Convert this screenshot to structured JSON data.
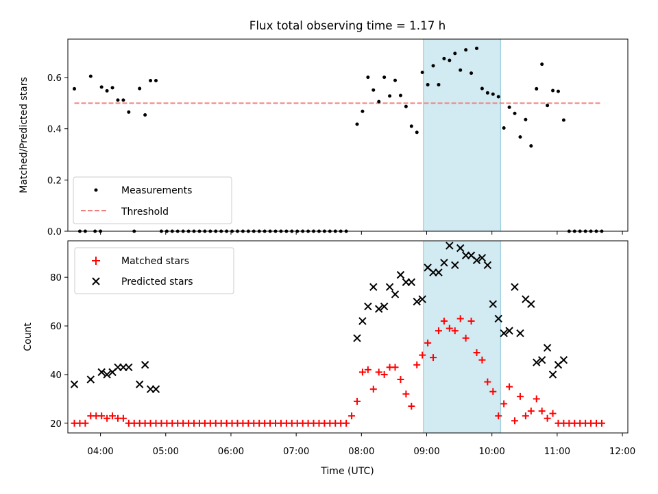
{
  "title": "Flux total observing time = 1.17 h",
  "chart_data": [
    {
      "type": "scatter",
      "ylabel": "Matched/Predicted stars",
      "xlabel": "",
      "xlim": [
        "03:30",
        "12:05"
      ],
      "ylim": [
        0,
        0.75
      ],
      "y_ticks": [
        0.0,
        0.2,
        0.4,
        0.6
      ],
      "y_tick_labels": [
        "0.0",
        "0.2",
        "0.4",
        "0.6"
      ],
      "legend_position": "bottom-left",
      "highlight_span": {
        "start": "08:57",
        "end": "10:08",
        "color": "#add8e6"
      },
      "threshold": {
        "name": "Threshold",
        "value": 0.5,
        "color": "#f08080",
        "style": "dashed"
      },
      "series": [
        {
          "name": "Measurements",
          "marker": "dot",
          "color": "#000000",
          "points": [
            [
              "03:36",
              0.556
            ],
            [
              "03:41",
              0
            ],
            [
              "03:46",
              0
            ],
            [
              "03:51",
              0.605
            ],
            [
              "03:55",
              0
            ],
            [
              "04:00",
              0
            ],
            [
              "04:01",
              0.563
            ],
            [
              "04:06",
              0.548
            ],
            [
              "04:11",
              0.56
            ],
            [
              "04:16",
              0.512
            ],
            [
              "04:21",
              0.512
            ],
            [
              "04:26",
              0.465
            ],
            [
              "04:31",
              0
            ],
            [
              "04:36",
              0.557
            ],
            [
              "04:41",
              0.454
            ],
            [
              "04:46",
              0.588
            ],
            [
              "04:51",
              0.588
            ],
            [
              "04:56",
              0
            ],
            [
              "05:01",
              0
            ],
            [
              "05:06",
              0
            ],
            [
              "05:11",
              0
            ],
            [
              "05:16",
              0
            ],
            [
              "05:21",
              0
            ],
            [
              "05:26",
              0
            ],
            [
              "05:31",
              0
            ],
            [
              "05:36",
              0
            ],
            [
              "05:41",
              0
            ],
            [
              "05:46",
              0
            ],
            [
              "05:51",
              0
            ],
            [
              "05:56",
              0
            ],
            [
              "06:01",
              0
            ],
            [
              "06:06",
              0
            ],
            [
              "06:11",
              0
            ],
            [
              "06:16",
              0
            ],
            [
              "06:21",
              0
            ],
            [
              "06:26",
              0
            ],
            [
              "06:31",
              0
            ],
            [
              "06:36",
              0
            ],
            [
              "06:41",
              0
            ],
            [
              "06:46",
              0
            ],
            [
              "06:51",
              0
            ],
            [
              "06:56",
              0
            ],
            [
              "07:01",
              0
            ],
            [
              "07:06",
              0
            ],
            [
              "07:11",
              0
            ],
            [
              "07:16",
              0
            ],
            [
              "07:21",
              0
            ],
            [
              "07:26",
              0
            ],
            [
              "07:31",
              0
            ],
            [
              "07:36",
              0
            ],
            [
              "07:41",
              0
            ],
            [
              "07:46",
              0
            ],
            [
              "07:56",
              0.418
            ],
            [
              "08:01",
              0.468
            ],
            [
              "08:06",
              0.601
            ],
            [
              "08:11",
              0.551
            ],
            [
              "08:16",
              0.506
            ],
            [
              "08:21",
              0.601
            ],
            [
              "08:26",
              0.528
            ],
            [
              "08:31",
              0.589
            ],
            [
              "08:36",
              0.53
            ],
            [
              "08:41",
              0.487
            ],
            [
              "08:46",
              0.41
            ],
            [
              "08:51",
              0.386
            ],
            [
              "08:56",
              0.62
            ],
            [
              "09:01",
              0.572
            ],
            [
              "09:06",
              0.646
            ],
            [
              "09:11",
              0.572
            ],
            [
              "09:16",
              0.674
            ],
            [
              "09:21",
              0.667
            ],
            [
              "09:26",
              0.694
            ],
            [
              "09:31",
              0.629
            ],
            [
              "09:36",
              0.708
            ],
            [
              "09:41",
              0.617
            ],
            [
              "09:46",
              0.714
            ],
            [
              "09:51",
              0.557
            ],
            [
              "09:56",
              0.54
            ],
            [
              "10:01",
              0.535
            ],
            [
              "10:06",
              0.525
            ],
            [
              "10:11",
              0.403
            ],
            [
              "10:16",
              0.484
            ],
            [
              "10:21",
              0.46
            ],
            [
              "10:26",
              0.368
            ],
            [
              "10:31",
              0.436
            ],
            [
              "10:36",
              0.333
            ],
            [
              "10:41",
              0.556
            ],
            [
              "10:46",
              0.652
            ],
            [
              "10:51",
              0.491
            ],
            [
              "10:56",
              0.549
            ],
            [
              "11:01",
              0.546
            ],
            [
              "11:06",
              0.434
            ],
            [
              "11:11",
              0
            ],
            [
              "11:16",
              0
            ],
            [
              "11:21",
              0
            ],
            [
              "11:26",
              0
            ],
            [
              "11:31",
              0
            ],
            [
              "11:36",
              0
            ],
            [
              "11:41",
              0
            ]
          ]
        }
      ]
    },
    {
      "type": "scatter",
      "ylabel": "Count",
      "xlabel": "Time (UTC)",
      "xlim": [
        "03:30",
        "12:05"
      ],
      "ylim": [
        16,
        95
      ],
      "y_ticks": [
        20,
        40,
        60,
        80
      ],
      "y_tick_labels": [
        "20",
        "40",
        "60",
        "80"
      ],
      "x_tick_labels": [
        "04:00",
        "05:00",
        "06:00",
        "07:00",
        "08:00",
        "09:00",
        "10:00",
        "11:00",
        "12:00"
      ],
      "legend_position": "top-left",
      "highlight_span": {
        "start": "08:57",
        "end": "10:08",
        "color": "#add8e6"
      },
      "series": [
        {
          "name": "Matched stars",
          "marker": "plus",
          "color": "#ff0000",
          "points": [
            [
              "03:36",
              20
            ],
            [
              "03:41",
              20
            ],
            [
              "03:46",
              20
            ],
            [
              "03:51",
              23
            ],
            [
              "03:56",
              23
            ],
            [
              "04:01",
              23
            ],
            [
              "04:06",
              22
            ],
            [
              "04:11",
              23
            ],
            [
              "04:16",
              22
            ],
            [
              "04:21",
              22
            ],
            [
              "04:26",
              20
            ],
            [
              "04:31",
              20
            ],
            [
              "04:36",
              20
            ],
            [
              "04:41",
              20
            ],
            [
              "04:46",
              20
            ],
            [
              "04:51",
              20
            ],
            [
              "04:56",
              20
            ],
            [
              "05:01",
              20
            ],
            [
              "05:06",
              20
            ],
            [
              "05:11",
              20
            ],
            [
              "05:16",
              20
            ],
            [
              "05:21",
              20
            ],
            [
              "05:26",
              20
            ],
            [
              "05:31",
              20
            ],
            [
              "05:36",
              20
            ],
            [
              "05:41",
              20
            ],
            [
              "05:46",
              20
            ],
            [
              "05:51",
              20
            ],
            [
              "05:56",
              20
            ],
            [
              "06:01",
              20
            ],
            [
              "06:06",
              20
            ],
            [
              "06:11",
              20
            ],
            [
              "06:16",
              20
            ],
            [
              "06:21",
              20
            ],
            [
              "06:26",
              20
            ],
            [
              "06:31",
              20
            ],
            [
              "06:36",
              20
            ],
            [
              "06:41",
              20
            ],
            [
              "06:46",
              20
            ],
            [
              "06:51",
              20
            ],
            [
              "06:56",
              20
            ],
            [
              "07:01",
              20
            ],
            [
              "07:06",
              20
            ],
            [
              "07:11",
              20
            ],
            [
              "07:16",
              20
            ],
            [
              "07:21",
              20
            ],
            [
              "07:26",
              20
            ],
            [
              "07:31",
              20
            ],
            [
              "07:36",
              20
            ],
            [
              "07:41",
              20
            ],
            [
              "07:46",
              20
            ],
            [
              "07:51",
              23
            ],
            [
              "07:56",
              29
            ],
            [
              "08:01",
              41
            ],
            [
              "08:06",
              42
            ],
            [
              "08:11",
              34
            ],
            [
              "08:16",
              41
            ],
            [
              "08:21",
              40
            ],
            [
              "08:26",
              43
            ],
            [
              "08:31",
              43
            ],
            [
              "08:36",
              38
            ],
            [
              "08:41",
              32
            ],
            [
              "08:46",
              27
            ],
            [
              "08:51",
              44
            ],
            [
              "08:56",
              48
            ],
            [
              "09:01",
              53
            ],
            [
              "09:06",
              47
            ],
            [
              "09:11",
              58
            ],
            [
              "09:16",
              62
            ],
            [
              "09:21",
              59
            ],
            [
              "09:26",
              58
            ],
            [
              "09:31",
              63
            ],
            [
              "09:36",
              55
            ],
            [
              "09:41",
              62
            ],
            [
              "09:46",
              49
            ],
            [
              "09:51",
              46
            ],
            [
              "09:56",
              37
            ],
            [
              "10:01",
              33
            ],
            [
              "10:06",
              23
            ],
            [
              "10:11",
              28
            ],
            [
              "10:16",
              35
            ],
            [
              "10:21",
              21
            ],
            [
              "10:26",
              31
            ],
            [
              "10:31",
              23
            ],
            [
              "10:36",
              25
            ],
            [
              "10:41",
              30
            ],
            [
              "10:46",
              25
            ],
            [
              "10:51",
              22
            ],
            [
              "10:56",
              24
            ],
            [
              "11:01",
              20
            ],
            [
              "11:06",
              20
            ],
            [
              "11:11",
              20
            ],
            [
              "11:16",
              20
            ],
            [
              "11:21",
              20
            ],
            [
              "11:26",
              20
            ],
            [
              "11:31",
              20
            ],
            [
              "11:36",
              20
            ],
            [
              "11:41",
              20
            ]
          ]
        },
        {
          "name": "Predicted stars",
          "marker": "x",
          "color": "#000000",
          "points": [
            [
              "03:36",
              36
            ],
            [
              "03:51",
              38
            ],
            [
              "04:01",
              41
            ],
            [
              "04:06",
              40
            ],
            [
              "04:11",
              41
            ],
            [
              "04:16",
              43
            ],
            [
              "04:21",
              43
            ],
            [
              "04:26",
              43
            ],
            [
              "04:36",
              36
            ],
            [
              "04:41",
              44
            ],
            [
              "04:46",
              34
            ],
            [
              "04:51",
              34
            ],
            [
              "07:56",
              55
            ],
            [
              "08:01",
              62
            ],
            [
              "08:06",
              68
            ],
            [
              "08:11",
              76
            ],
            [
              "08:16",
              67
            ],
            [
              "08:21",
              68
            ],
            [
              "08:26",
              76
            ],
            [
              "08:31",
              73
            ],
            [
              "08:36",
              81
            ],
            [
              "08:41",
              78
            ],
            [
              "08:46",
              78
            ],
            [
              "08:51",
              70
            ],
            [
              "08:56",
              71
            ],
            [
              "09:01",
              84
            ],
            [
              "09:06",
              82
            ],
            [
              "09:11",
              82
            ],
            [
              "09:16",
              86
            ],
            [
              "09:21",
              93
            ],
            [
              "09:26",
              85
            ],
            [
              "09:31",
              92
            ],
            [
              "09:36",
              89
            ],
            [
              "09:41",
              89
            ],
            [
              "09:46",
              87
            ],
            [
              "09:51",
              88
            ],
            [
              "09:56",
              85
            ],
            [
              "10:01",
              69
            ],
            [
              "10:06",
              63
            ],
            [
              "10:11",
              57
            ],
            [
              "10:16",
              58
            ],
            [
              "10:21",
              76
            ],
            [
              "10:26",
              57
            ],
            [
              "10:31",
              71
            ],
            [
              "10:36",
              69
            ],
            [
              "10:41",
              45
            ],
            [
              "10:46",
              46
            ],
            [
              "10:51",
              51
            ],
            [
              "10:56",
              40
            ],
            [
              "11:01",
              44
            ],
            [
              "11:06",
              46
            ]
          ]
        }
      ]
    }
  ]
}
